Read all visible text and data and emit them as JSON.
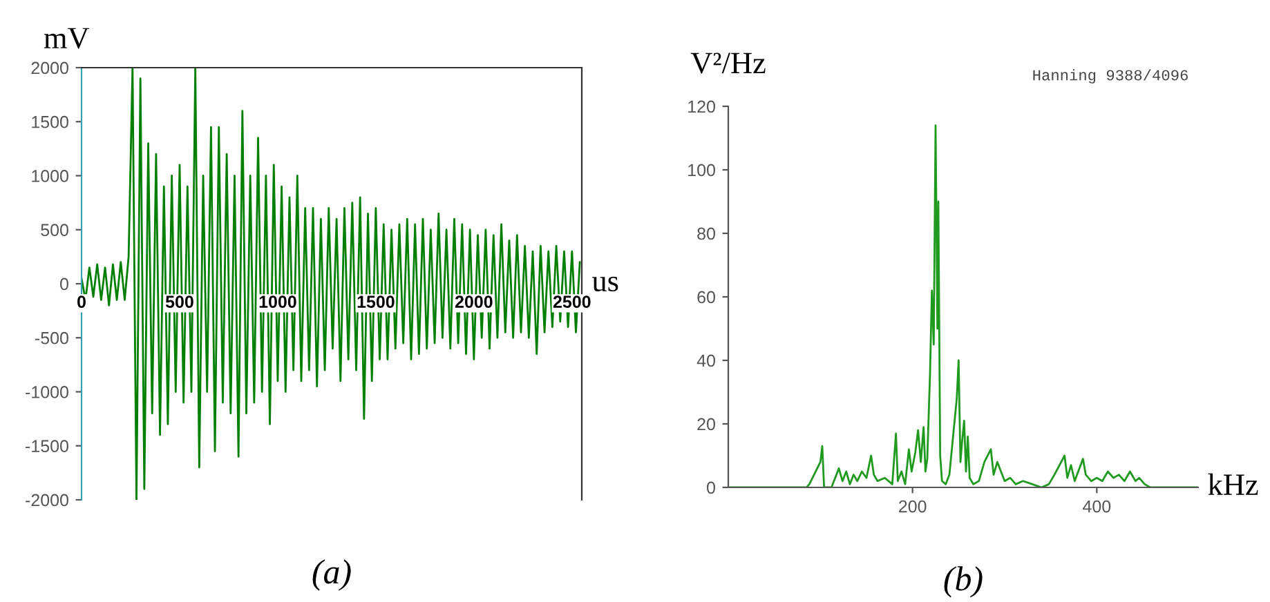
{
  "chart_data": [
    {
      "type": "line",
      "title": "(a)",
      "ylabel": "mV",
      "xlabel": "us",
      "xlim": [
        0,
        2550
      ],
      "ylim": [
        -2000,
        2000
      ],
      "xticks": [
        0,
        500,
        1000,
        1500,
        2000,
        2500
      ],
      "yticks": [
        -2000,
        -1500,
        -1000,
        -500,
        0,
        500,
        1000,
        1500,
        2000
      ],
      "grid": false,
      "legend": false,
      "marker": "none",
      "line_style": "solid",
      "series": [
        {
          "color": "#007f00",
          "x": [
            0,
            20,
            40,
            60,
            80,
            100,
            120,
            140,
            160,
            180,
            200,
            220,
            240,
            260,
            280,
            300,
            320,
            340,
            360,
            380,
            400,
            420,
            440,
            460,
            480,
            500,
            520,
            540,
            560,
            580,
            600,
            620,
            640,
            660,
            680,
            700,
            720,
            740,
            760,
            780,
            800,
            820,
            840,
            860,
            880,
            900,
            920,
            940,
            960,
            980,
            1000,
            1020,
            1040,
            1060,
            1080,
            1100,
            1120,
            1140,
            1160,
            1180,
            1200,
            1220,
            1240,
            1260,
            1280,
            1300,
            1320,
            1340,
            1360,
            1380,
            1400,
            1420,
            1440,
            1460,
            1480,
            1500,
            1520,
            1540,
            1560,
            1580,
            1600,
            1620,
            1640,
            1660,
            1680,
            1700,
            1720,
            1740,
            1760,
            1780,
            1800,
            1820,
            1840,
            1860,
            1880,
            1900,
            1920,
            1940,
            1960,
            1980,
            2000,
            2020,
            2040,
            2060,
            2080,
            2100,
            2120,
            2140,
            2160,
            2180,
            2200,
            2220,
            2240,
            2260,
            2280,
            2300,
            2320,
            2340,
            2360,
            2380,
            2400,
            2420,
            2440,
            2460,
            2480,
            2500,
            2520,
            2540
          ],
          "values": [
            50,
            -150,
            150,
            -120,
            180,
            -150,
            150,
            -200,
            180,
            -150,
            200,
            -150,
            250,
            2000,
            -2000,
            1900,
            -1900,
            1300,
            -1200,
            1200,
            -1400,
            900,
            -1300,
            1000,
            -1000,
            1100,
            -1100,
            900,
            -1000,
            2000,
            -1700,
            1000,
            -1000,
            1450,
            -1550,
            1450,
            -1100,
            1200,
            -1200,
            1000,
            -1600,
            1600,
            -1200,
            1000,
            -1100,
            1350,
            -1000,
            1000,
            -1300,
            1100,
            -900,
            900,
            -1000,
            800,
            -800,
            1000,
            -900,
            700,
            -800,
            700,
            -950,
            600,
            -800,
            700,
            -600,
            600,
            -900,
            700,
            -700,
            750,
            -800,
            800,
            -1250,
            650,
            -900,
            700,
            -700,
            550,
            -700,
            500,
            -600,
            550,
            -550,
            600,
            -700,
            550,
            -650,
            600,
            -600,
            500,
            -550,
            650,
            -500,
            500,
            -600,
            600,
            -550,
            550,
            -650,
            500,
            -700,
            450,
            -500,
            500,
            -600,
            450,
            -500,
            550,
            -450,
            400,
            -500,
            450,
            -450,
            350,
            -500,
            300,
            -650,
            350,
            -450,
            300,
            -400,
            350,
            -350,
            300,
            -400,
            300,
            -450,
            200
          ]
        }
      ]
    },
    {
      "type": "line",
      "title": "(b)",
      "ylabel": "V²/Hz",
      "xlabel": "kHz",
      "annotations": [
        "Hanning 9388/4096"
      ],
      "xlim": [
        0,
        510
      ],
      "ylim": [
        0,
        120
      ],
      "xticks": [
        200,
        400
      ],
      "yticks": [
        0,
        20,
        40,
        60,
        80,
        100,
        120
      ],
      "grid": false,
      "legend": false,
      "marker": "none",
      "line_style": "solid",
      "series": [
        {
          "color": "#1f9a1f",
          "x": [
            0,
            85,
            88,
            100,
            102,
            104,
            112,
            116,
            120,
            124,
            128,
            132,
            136,
            140,
            145,
            150,
            155,
            158,
            162,
            170,
            178,
            182,
            184,
            188,
            192,
            196,
            199,
            203,
            206,
            209,
            212,
            214,
            216,
            219,
            221,
            223,
            225,
            227,
            228,
            230,
            232,
            236,
            240,
            248,
            250,
            252,
            254,
            256,
            258,
            260,
            262,
            266,
            272,
            278,
            285,
            288,
            292,
            296,
            300,
            306,
            312,
            320,
            330,
            340,
            348,
            354,
            365,
            368,
            372,
            376,
            385,
            388,
            394,
            400,
            406,
            412,
            418,
            424,
            430,
            436,
            442,
            446,
            452,
            458,
            510
          ],
          "values": [
            0,
            0,
            1,
            8,
            13,
            0,
            0,
            3,
            6,
            2,
            5,
            1,
            4,
            2,
            5,
            3,
            10,
            4,
            2,
            3,
            1,
            17,
            2,
            5,
            1,
            12,
            5,
            11,
            18,
            8,
            19,
            5,
            9,
            36,
            62,
            45,
            114,
            50,
            90,
            10,
            2,
            1,
            4,
            28,
            40,
            8,
            15,
            21,
            5,
            16,
            3,
            1,
            2,
            8,
            12,
            4,
            8,
            5,
            2,
            3,
            1,
            2,
            1,
            0,
            1,
            4,
            10,
            3,
            7,
            2,
            9,
            4,
            2,
            3,
            2,
            5,
            3,
            4,
            2,
            5,
            2,
            3,
            1,
            0,
            0
          ]
        }
      ]
    }
  ]
}
